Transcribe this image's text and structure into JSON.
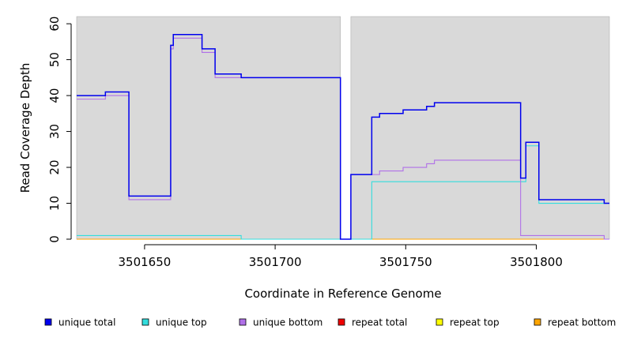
{
  "chart_data": {
    "type": "line",
    "xlabel": "Coordinate in Reference Genome",
    "ylabel": "Read Coverage Depth",
    "xlim": [
      3501624,
      3501828
    ],
    "ylim": [
      0,
      62
    ],
    "xticks": [
      3501650,
      3501700,
      3501750,
      3501800
    ],
    "yticks": [
      0,
      10,
      20,
      30,
      40,
      50,
      60
    ],
    "shaded_regions": [
      [
        3501624,
        3501725
      ],
      [
        3501729,
        3501828
      ]
    ],
    "background": "#d9d9d9",
    "grid": false,
    "legend_position": "bottom",
    "series": [
      {
        "name": "unique total",
        "color": "#0000ee",
        "x": [
          3501624,
          3501635,
          3501644,
          3501660,
          3501661,
          3501662,
          3501672,
          3501677,
          3501687,
          3501725,
          3501729,
          3501737,
          3501740,
          3501749,
          3501758,
          3501761,
          3501794,
          3501796,
          3501801,
          3501826,
          3501828
        ],
        "y": [
          40,
          41,
          12,
          54,
          57,
          57,
          53,
          46,
          45,
          0,
          18,
          34,
          35,
          36,
          37,
          38,
          17,
          27,
          11,
          10,
          10
        ]
      },
      {
        "name": "unique top",
        "color": "#33dddd",
        "x": [
          3501624,
          3501687,
          3501725,
          3501729,
          3501737,
          3501794,
          3501796,
          3501801,
          3501828
        ],
        "y": [
          1,
          0,
          0,
          0,
          16,
          16,
          26,
          10,
          10
        ]
      },
      {
        "name": "unique bottom",
        "color": "#b070e8",
        "x": [
          3501624,
          3501635,
          3501644,
          3501660,
          3501661,
          3501662,
          3501672,
          3501677,
          3501687,
          3501725,
          3501729,
          3501737,
          3501740,
          3501749,
          3501758,
          3501761,
          3501794,
          3501826,
          3501828
        ],
        "y": [
          39,
          40,
          11,
          53,
          56,
          56,
          52,
          45,
          45,
          0,
          18,
          18,
          19,
          20,
          21,
          22,
          1,
          0,
          0
        ]
      },
      {
        "name": "repeat total",
        "color": "#ee0000",
        "x": [
          3501624,
          3501828
        ],
        "y": [
          0,
          0
        ]
      },
      {
        "name": "repeat top",
        "color": "#ffff00",
        "x": [
          3501624,
          3501828
        ],
        "y": [
          0,
          0
        ]
      },
      {
        "name": "repeat bottom",
        "color": "#ffa500",
        "x": [
          3501624,
          3501828
        ],
        "y": [
          0,
          0
        ]
      }
    ]
  }
}
